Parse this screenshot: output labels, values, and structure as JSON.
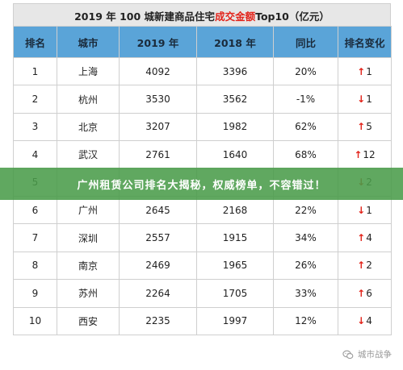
{
  "title": {
    "prefix": "2019 年 100 城新建商品住宅",
    "highlight": "成交金额",
    "suffix": " Top10（亿元）"
  },
  "colors": {
    "header_bg": "#5aa4d8",
    "highlight": "#e2231a",
    "banner_bg": "#4a9c4a",
    "arrow": "#e2231a"
  },
  "table": {
    "headers": [
      "排名",
      "城市",
      "2019 年",
      "2018 年",
      "同比",
      "排名变化"
    ],
    "rows": [
      {
        "rank": "1",
        "city": "上海",
        "y2019": "4092",
        "y2018": "3396",
        "yoy": "20%",
        "dir": "up",
        "change": "1"
      },
      {
        "rank": "2",
        "city": "杭州",
        "y2019": "3530",
        "y2018": "3562",
        "yoy": "-1%",
        "dir": "down",
        "change": "1"
      },
      {
        "rank": "3",
        "city": "北京",
        "y2019": "3207",
        "y2018": "1982",
        "yoy": "62%",
        "dir": "up",
        "change": "5"
      },
      {
        "rank": "4",
        "city": "武汉",
        "y2019": "2761",
        "y2018": "1640",
        "yoy": "68%",
        "dir": "up",
        "change": "12"
      },
      {
        "rank": "5",
        "city": "",
        "y2019": "",
        "y2018": "",
        "yoy": "",
        "dir": "down",
        "change": "2"
      },
      {
        "rank": "6",
        "city": "广州",
        "y2019": "2645",
        "y2018": "2168",
        "yoy": "22%",
        "dir": "down",
        "change": "1"
      },
      {
        "rank": "7",
        "city": "深圳",
        "y2019": "2557",
        "y2018": "1915",
        "yoy": "34%",
        "dir": "up",
        "change": "4"
      },
      {
        "rank": "8",
        "city": "南京",
        "y2019": "2469",
        "y2018": "1965",
        "yoy": "26%",
        "dir": "up",
        "change": "2"
      },
      {
        "rank": "9",
        "city": "苏州",
        "y2019": "2264",
        "y2018": "1705",
        "yoy": "33%",
        "dir": "up",
        "change": "6"
      },
      {
        "rank": "10",
        "city": "西安",
        "y2019": "2235",
        "y2018": "1997",
        "yoy": "12%",
        "dir": "down",
        "change": "4"
      }
    ]
  },
  "banner": {
    "text": "广州租赁公司排名大揭秘，权威榜单，不容错过！"
  },
  "watermark": {
    "text": "城市战争",
    "icon": "wechat-icon"
  }
}
